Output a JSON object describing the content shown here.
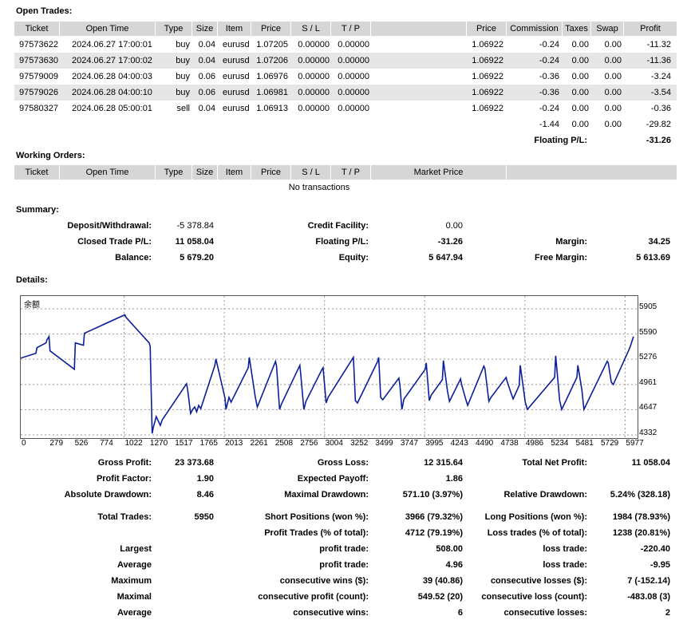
{
  "open_trades": {
    "title": "Open Trades:",
    "headers": [
      "Ticket",
      "Open Time",
      "Type",
      "Size",
      "Item",
      "Price",
      "S / L",
      "T / P",
      "",
      "Price",
      "Commission",
      "Taxes",
      "Swap",
      "Profit"
    ],
    "rows": [
      [
        "97573622",
        "2024.06.27 17:00:01",
        "buy",
        "0.04",
        "eurusd",
        "1.07205",
        "0.00000",
        "0.00000",
        "1.06922",
        "-0.24",
        "0.00",
        "0.00",
        "-11.32"
      ],
      [
        "97573630",
        "2024.06.27 17:00:02",
        "buy",
        "0.04",
        "eurusd",
        "1.07206",
        "0.00000",
        "0.00000",
        "1.06922",
        "-0.24",
        "0.00",
        "0.00",
        "-11.36"
      ],
      [
        "97579009",
        "2024.06.28 04:00:03",
        "buy",
        "0.06",
        "eurusd",
        "1.06976",
        "0.00000",
        "0.00000",
        "1.06922",
        "-0.36",
        "0.00",
        "0.00",
        "-3.24"
      ],
      [
        "97579026",
        "2024.06.28 04:00:10",
        "buy",
        "0.06",
        "eurusd",
        "1.06981",
        "0.00000",
        "0.00000",
        "1.06922",
        "-0.36",
        "0.00",
        "0.00",
        "-3.54"
      ],
      [
        "97580327",
        "2024.06.28 05:00:01",
        "sell",
        "0.04",
        "eurusd",
        "1.06913",
        "0.00000",
        "0.00000",
        "1.06922",
        "-0.24",
        "0.00",
        "0.00",
        "-0.36"
      ]
    ],
    "totals": [
      "-1.44",
      "0.00",
      "0.00",
      "-29.82"
    ],
    "floating_label": "Floating P/L:",
    "floating_value": "-31.26"
  },
  "working_orders": {
    "title": "Working Orders:",
    "headers": [
      "Ticket",
      "Open Time",
      "Type",
      "Size",
      "Item",
      "Price",
      "S / L",
      "T / P",
      "Market Price"
    ],
    "empty": "No transactions"
  },
  "summary": {
    "title": "Summary:",
    "deposit_label": "Deposit/Withdrawal:",
    "deposit": "-5 378.84",
    "credit_label": "Credit Facility:",
    "credit": "0.00",
    "closed_label": "Closed Trade P/L:",
    "closed": "11 058.04",
    "floating_label": "Floating P/L:",
    "floating": "-31.26",
    "margin_label": "Margin:",
    "margin": "34.25",
    "balance_label": "Balance:",
    "balance": "5 679.20",
    "equity_label": "Equity:",
    "equity": "5 647.94",
    "free_margin_label": "Free Margin:",
    "free_margin": "5 613.69"
  },
  "details": {
    "title": "Details:",
    "chart_legend": "余额",
    "chart_data": {
      "type": "line",
      "ylim": [
        4332,
        5905
      ],
      "yticks": [
        "5905",
        "5590",
        "5276",
        "4961",
        "4647",
        "4332"
      ],
      "xticks": [
        "0",
        "279",
        "526",
        "774",
        "1022",
        "1270",
        "1517",
        "1765",
        "2013",
        "2261",
        "2508",
        "2756",
        "3004",
        "3252",
        "3499",
        "3747",
        "3995",
        "4243",
        "4490",
        "4738",
        "4986",
        "5234",
        "5481",
        "5729",
        "5977"
      ],
      "xmax": 6100,
      "x": [
        0,
        150,
        160,
        250,
        260,
        279,
        290,
        530,
        540,
        620,
        630,
        1030,
        1040,
        1270,
        1280,
        1300,
        1310,
        1330,
        1340,
        1380,
        1400,
        1640,
        1650,
        1680,
        1700,
        1720,
        1740,
        1760,
        1780,
        1920,
        1930,
        2020,
        2030,
        2060,
        2080,
        2250,
        2260,
        2320,
        2340,
        2520,
        2530,
        2560,
        2580,
        2760,
        2770,
        2800,
        2820,
        2980,
        2990,
        3020,
        3040,
        3280,
        3290,
        3310,
        3330,
        3530,
        3540,
        3560,
        3580,
        3740,
        3750,
        3770,
        3790,
        4000,
        4010,
        4040,
        4060,
        4170,
        4180,
        4220,
        4240,
        4350,
        4360,
        4400,
        4420,
        4580,
        4590,
        4630,
        4650,
        4800,
        4810,
        4850,
        4870,
        4930,
        4940,
        4990,
        5010,
        5280,
        5290,
        5330,
        5350,
        5500,
        5510,
        5550,
        5570,
        5800,
        5810,
        5840,
        5860,
        6010,
        6030,
        6060
      ],
      "y": [
        5290,
        5350,
        5420,
        5480,
        5520,
        5560,
        5380,
        5150,
        5480,
        5450,
        5600,
        5830,
        5800,
        5480,
        5440,
        4350,
        4420,
        4510,
        4560,
        4450,
        4520,
        4970,
        4900,
        4600,
        4650,
        4680,
        4620,
        4700,
        4660,
        5200,
        5280,
        4790,
        4650,
        4800,
        4740,
        5170,
        5300,
        4800,
        4680,
        5250,
        5190,
        4650,
        4720,
        5200,
        5080,
        4650,
        4750,
        5150,
        5170,
        4730,
        4800,
        5280,
        5300,
        4760,
        4730,
        5250,
        5300,
        4800,
        4770,
        5040,
        4950,
        4650,
        4780,
        5150,
        5230,
        4760,
        4830,
        5020,
        5260,
        4880,
        4750,
        5030,
        4960,
        4780,
        4700,
        5190,
        5160,
        4750,
        4800,
        5050,
        5000,
        4850,
        4780,
        4950,
        5200,
        4740,
        4650,
        5050,
        5320,
        4760,
        4650,
        5050,
        5200,
        4890,
        4650,
        5250,
        5230,
        4990,
        4960,
        5380,
        5440,
        5560
      ]
    }
  },
  "stats": {
    "gross_profit_label": "Gross Profit:",
    "gross_profit": "23 373.68",
    "gross_loss_label": "Gross Loss:",
    "gross_loss": "12 315.64",
    "net_profit_label": "Total Net Profit:",
    "net_profit": "11 058.04",
    "profit_factor_label": "Profit Factor:",
    "profit_factor": "1.90",
    "expected_payoff_label": "Expected Payoff:",
    "expected_payoff": "1.86",
    "abs_dd_label": "Absolute Drawdown:",
    "abs_dd": "8.46",
    "max_dd_label": "Maximal Drawdown:",
    "max_dd": "571.10 (3.97%)",
    "rel_dd_label": "Relative Drawdown:",
    "rel_dd": "5.24% (328.18)",
    "total_trades_label": "Total Trades:",
    "total_trades": "5950",
    "short_label": "Short Positions (won %):",
    "short": "3966 (79.32%)",
    "long_label": "Long Positions (won %):",
    "long": "1984 (78.93%)",
    "profit_trades_label": "Profit Trades (% of total):",
    "profit_trades": "4712 (79.19%)",
    "loss_trades_label": "Loss trades (% of total):",
    "loss_trades": "1238 (20.81%)",
    "largest_label": "Largest",
    "largest_profit_label": "profit trade:",
    "largest_profit": "508.00",
    "largest_loss_label": "loss trade:",
    "largest_loss": "-220.40",
    "average_label": "Average",
    "average_profit_label": "profit trade:",
    "average_profit": "4.96",
    "average_loss_label": "loss trade:",
    "average_loss": "-9.95",
    "maximum_label": "Maximum",
    "max_cons_wins_label": "consecutive wins ($):",
    "max_cons_wins": "39 (40.86)",
    "max_cons_losses_label": "consecutive losses ($):",
    "max_cons_losses": "7 (-152.14)",
    "maximal_label": "Maximal",
    "maximal_profit_label": "consecutive profit (count):",
    "maximal_profit": "549.52 (20)",
    "maximal_loss_label": "consecutive loss (count):",
    "maximal_loss": "-483.08 (3)",
    "average2_label": "Average",
    "avg_cons_wins_label": "consecutive wins:",
    "avg_cons_wins": "6",
    "avg_cons_losses_label": "consecutive losses:",
    "avg_cons_losses": "2"
  }
}
